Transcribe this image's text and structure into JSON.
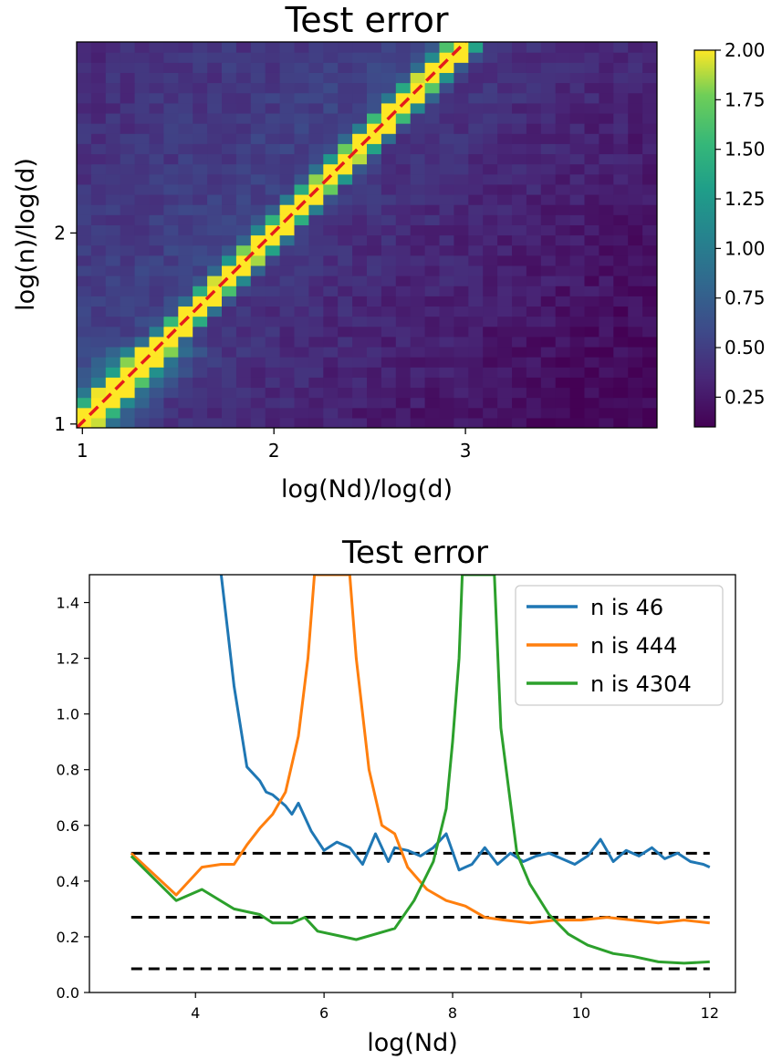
{
  "chart_data": [
    {
      "type": "heatmap",
      "title": "Test error",
      "xlabel": "log(Nd)/log(d)",
      "ylabel": "log(n)/log(d)",
      "xlim": [
        0.97,
        4.0
      ],
      "ylim": [
        0.98,
        3.0
      ],
      "xticks": [
        "1",
        "2",
        "3"
      ],
      "yticks": [
        "1",
        "2"
      ],
      "diagonal_line": {
        "from": [
          0.97,
          0.98
        ],
        "to": [
          3.0,
          3.0
        ],
        "color": "#e41a1c",
        "style": "dashed"
      },
      "colorbar": {
        "range": [
          0.1,
          2.0
        ],
        "ticks": [
          "0.25",
          "0.50",
          "0.75",
          "1.00",
          "1.25",
          "1.50",
          "1.75",
          "2.00"
        ],
        "colormap": "viridis"
      },
      "grid_size": [
        40,
        38
      ]
    },
    {
      "type": "line",
      "title": "Test error",
      "xlabel": "log(Nd)",
      "ylabel": "",
      "xlim": [
        2.35,
        12.4
      ],
      "ylim": [
        0.0,
        1.5
      ],
      "xticks": [
        "4",
        "6",
        "8",
        "10",
        "12"
      ],
      "yticks": [
        "0.0",
        "0.2",
        "0.4",
        "0.6",
        "0.8",
        "1.0",
        "1.2",
        "1.4"
      ],
      "legend_position": "top-right",
      "series": [
        {
          "name": "n is 46",
          "color": "#1f77b4",
          "x": [
            4.4,
            4.5,
            4.6,
            4.8,
            5.0,
            5.1,
            5.2,
            5.4,
            5.5,
            5.6,
            5.8,
            6.0,
            6.2,
            6.4,
            6.6,
            6.8,
            7.0,
            7.1,
            7.3,
            7.5,
            7.7,
            7.9,
            8.1,
            8.3,
            8.5,
            8.7,
            8.9,
            9.1,
            9.3,
            9.5,
            9.7,
            9.9,
            10.1,
            10.3,
            10.5,
            10.7,
            10.9,
            11.1,
            11.3,
            11.5,
            11.7,
            11.9,
            12.0
          ],
          "values": [
            1.5,
            1.3,
            1.1,
            0.81,
            0.76,
            0.72,
            0.71,
            0.67,
            0.64,
            0.68,
            0.58,
            0.51,
            0.54,
            0.52,
            0.46,
            0.57,
            0.47,
            0.52,
            0.51,
            0.49,
            0.52,
            0.57,
            0.44,
            0.46,
            0.52,
            0.46,
            0.5,
            0.47,
            0.49,
            0.5,
            0.48,
            0.46,
            0.49,
            0.55,
            0.47,
            0.51,
            0.49,
            0.52,
            0.48,
            0.5,
            0.47,
            0.46,
            0.45
          ]
        },
        {
          "name": "n is 444",
          "color": "#ff7f0e",
          "x": [
            3.0,
            3.7,
            4.1,
            4.4,
            4.6,
            4.8,
            5.0,
            5.2,
            5.4,
            5.6,
            5.75,
            5.85,
            6.4,
            6.5,
            6.7,
            6.9,
            7.1,
            7.3,
            7.6,
            7.9,
            8.2,
            8.5,
            8.8,
            9.2,
            9.6,
            10.0,
            10.4,
            10.8,
            11.2,
            11.6,
            12.0
          ],
          "values": [
            0.5,
            0.35,
            0.45,
            0.46,
            0.46,
            0.53,
            0.59,
            0.64,
            0.72,
            0.92,
            1.2,
            1.5,
            1.5,
            1.2,
            0.8,
            0.6,
            0.57,
            0.45,
            0.37,
            0.33,
            0.31,
            0.27,
            0.26,
            0.25,
            0.26,
            0.26,
            0.27,
            0.26,
            0.25,
            0.26,
            0.25
          ]
        },
        {
          "name": "n is 4304",
          "color": "#2ca02c",
          "x": [
            3.0,
            3.7,
            4.1,
            4.6,
            5.0,
            5.2,
            5.5,
            5.7,
            5.9,
            6.3,
            6.5,
            6.8,
            7.1,
            7.4,
            7.7,
            7.9,
            8.0,
            8.1,
            8.15,
            8.65,
            8.75,
            9.0,
            9.2,
            9.5,
            9.8,
            10.1,
            10.5,
            10.8,
            11.2,
            11.6,
            12.0
          ],
          "values": [
            0.49,
            0.33,
            0.37,
            0.3,
            0.28,
            0.25,
            0.25,
            0.27,
            0.22,
            0.2,
            0.19,
            0.21,
            0.23,
            0.33,
            0.47,
            0.66,
            0.9,
            1.2,
            1.5,
            1.5,
            0.95,
            0.5,
            0.39,
            0.28,
            0.21,
            0.17,
            0.14,
            0.13,
            0.11,
            0.105,
            0.11
          ]
        }
      ],
      "reference_lines": [
        {
          "y": 0.5,
          "color": "#000000",
          "style": "dashed"
        },
        {
          "y": 0.27,
          "color": "#000000",
          "style": "dashed"
        },
        {
          "y": 0.085,
          "color": "#000000",
          "style": "dashed"
        }
      ]
    }
  ]
}
